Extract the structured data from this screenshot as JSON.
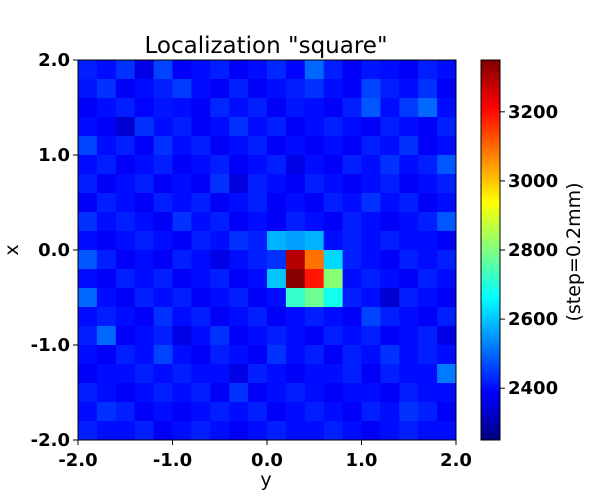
{
  "chart_data": {
    "type": "heatmap",
    "title": "Localization \"square\"",
    "xlabel": "y",
    "ylabel": "x",
    "colorbar_label": "(step=0.2mm)",
    "xlim": [
      -2.0,
      2.0
    ],
    "ylim": [
      -2.0,
      2.0
    ],
    "xticks": [
      "-2.0",
      "-1.0",
      "0.0",
      "1.0",
      "2.0"
    ],
    "yticks": [
      "-2.0",
      "-1.0",
      "0.0",
      "1.0",
      "2.0"
    ],
    "x_tick_values": [
      -2.0,
      -1.0,
      0.0,
      1.0,
      2.0
    ],
    "y_tick_values": [
      -2.0,
      -1.0,
      0.0,
      1.0,
      2.0
    ],
    "colorbar_ticks": [
      "2400",
      "2600",
      "2800",
      "3000",
      "3200"
    ],
    "colorbar_tick_values": [
      2400,
      2600,
      2800,
      3000,
      3200
    ],
    "value_range": [
      2250,
      3350
    ],
    "colormap": "jet",
    "rows_top_to_bottom": [
      [
        2420,
        2400,
        2440,
        2360,
        2460,
        2380,
        2400,
        2420,
        2380,
        2400,
        2430,
        2390,
        2500,
        2420,
        2380,
        2410,
        2400,
        2380,
        2420,
        2400
      ],
      [
        2410,
        2440,
        2380,
        2400,
        2420,
        2450,
        2400,
        2380,
        2420,
        2380,
        2400,
        2420,
        2440,
        2400,
        2380,
        2460,
        2420,
        2400,
        2440,
        2380
      ],
      [
        2380,
        2400,
        2420,
        2390,
        2410,
        2400,
        2380,
        2430,
        2400,
        2420,
        2380,
        2410,
        2400,
        2380,
        2420,
        2480,
        2400,
        2450,
        2500,
        2400
      ],
      [
        2400,
        2380,
        2340,
        2440,
        2400,
        2420,
        2380,
        2400,
        2440,
        2400,
        2420,
        2380,
        2400,
        2420,
        2400,
        2380,
        2420,
        2400,
        2380,
        2420
      ],
      [
        2460,
        2400,
        2420,
        2380,
        2440,
        2400,
        2420,
        2380,
        2400,
        2420,
        2380,
        2400,
        2380,
        2400,
        2380,
        2420,
        2400,
        2440,
        2380,
        2400
      ],
      [
        2400,
        2420,
        2380,
        2400,
        2420,
        2380,
        2400,
        2420,
        2380,
        2400,
        2420,
        2360,
        2400,
        2380,
        2420,
        2400,
        2440,
        2400,
        2420,
        2480
      ],
      [
        2420,
        2380,
        2400,
        2420,
        2380,
        2400,
        2380,
        2440,
        2350,
        2420,
        2400,
        2380,
        2420,
        2400,
        2380,
        2400,
        2420,
        2380,
        2400,
        2420
      ],
      [
        2380,
        2420,
        2400,
        2380,
        2420,
        2400,
        2420,
        2380,
        2400,
        2420,
        2380,
        2400,
        2380,
        2420,
        2400,
        2440,
        2400,
        2420,
        2380,
        2400
      ],
      [
        2440,
        2400,
        2420,
        2400,
        2380,
        2440,
        2400,
        2420,
        2380,
        2400,
        2380,
        2420,
        2400,
        2380,
        2420,
        2400,
        2380,
        2400,
        2420,
        2480
      ],
      [
        2400,
        2380,
        2400,
        2420,
        2400,
        2380,
        2420,
        2400,
        2440,
        2420,
        2580,
        2560,
        2580,
        2400,
        2420,
        2400,
        2420,
        2400,
        2400,
        2380
      ],
      [
        2480,
        2420,
        2380,
        2400,
        2380,
        2420,
        2400,
        2360,
        2400,
        2420,
        2440,
        3290,
        3090,
        2620,
        2420,
        2400,
        2380,
        2420,
        2400,
        2420
      ],
      [
        2400,
        2380,
        2420,
        2400,
        2420,
        2380,
        2400,
        2420,
        2380,
        2400,
        2600,
        3340,
        3190,
        2810,
        2400,
        2420,
        2400,
        2380,
        2420,
        2400
      ],
      [
        2500,
        2400,
        2380,
        2420,
        2400,
        2420,
        2380,
        2400,
        2420,
        2380,
        2400,
        2720,
        2780,
        2680,
        2420,
        2400,
        2340,
        2420,
        2400,
        2380
      ],
      [
        2400,
        2420,
        2400,
        2380,
        2440,
        2400,
        2420,
        2380,
        2400,
        2420,
        2380,
        2400,
        2420,
        2400,
        2380,
        2460,
        2420,
        2400,
        2380,
        2420
      ],
      [
        2420,
        2500,
        2380,
        2400,
        2420,
        2360,
        2400,
        2440,
        2380,
        2400,
        2420,
        2400,
        2380,
        2420,
        2400,
        2420,
        2380,
        2400,
        2420,
        2360
      ],
      [
        2400,
        2380,
        2420,
        2400,
        2460,
        2400,
        2380,
        2420,
        2400,
        2380,
        2440,
        2400,
        2420,
        2380,
        2420,
        2400,
        2440,
        2400,
        2420,
        2400
      ],
      [
        2380,
        2400,
        2400,
        2420,
        2400,
        2420,
        2400,
        2400,
        2360,
        2420,
        2400,
        2380,
        2400,
        2400,
        2420,
        2380,
        2420,
        2400,
        2400,
        2520
      ],
      [
        2420,
        2400,
        2380,
        2400,
        2420,
        2400,
        2420,
        2380,
        2440,
        2380,
        2400,
        2420,
        2400,
        2380,
        2400,
        2400,
        2380,
        2420,
        2400,
        2400
      ],
      [
        2400,
        2440,
        2420,
        2380,
        2400,
        2380,
        2400,
        2420,
        2400,
        2420,
        2380,
        2400,
        2420,
        2400,
        2380,
        2420,
        2400,
        2440,
        2420,
        2380
      ],
      [
        2420,
        2400,
        2400,
        2420,
        2380,
        2400,
        2420,
        2400,
        2380,
        2400,
        2420,
        2400,
        2400,
        2420,
        2400,
        2380,
        2400,
        2420,
        2400,
        2400
      ]
    ]
  }
}
